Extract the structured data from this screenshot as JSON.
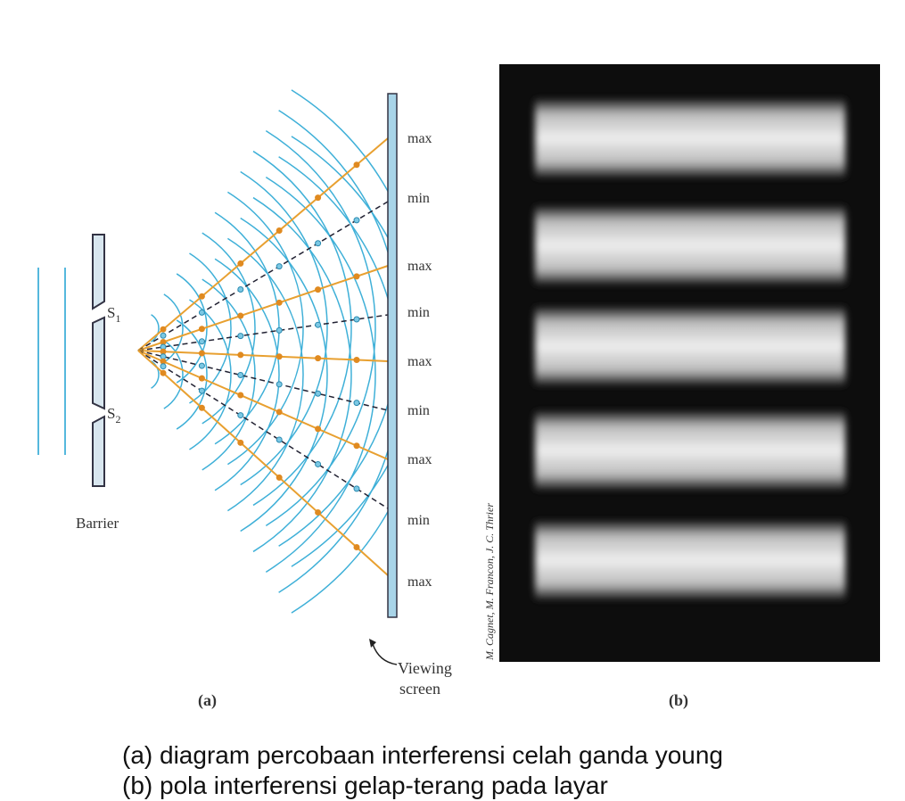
{
  "figure_a": {
    "screen_labels": [
      "max",
      "min",
      "max",
      "min",
      "max",
      "min",
      "max",
      "min",
      "max"
    ],
    "sources": [
      {
        "letter": "S",
        "subscript": "1"
      },
      {
        "letter": "S",
        "subscript": "2"
      }
    ],
    "barrier_label": "Barrier",
    "screen_caption": [
      "Viewing",
      "screen"
    ],
    "panel_label": "(a)"
  },
  "figure_b": {
    "credit": "M. Cagnet, M. Francon, J. C. Thrier",
    "panel_label": "(b)"
  },
  "captions": [
    "(a) diagram percobaan interferensi celah ganda young",
    "(b) pola interferensi gelap-terang pada layar"
  ]
}
